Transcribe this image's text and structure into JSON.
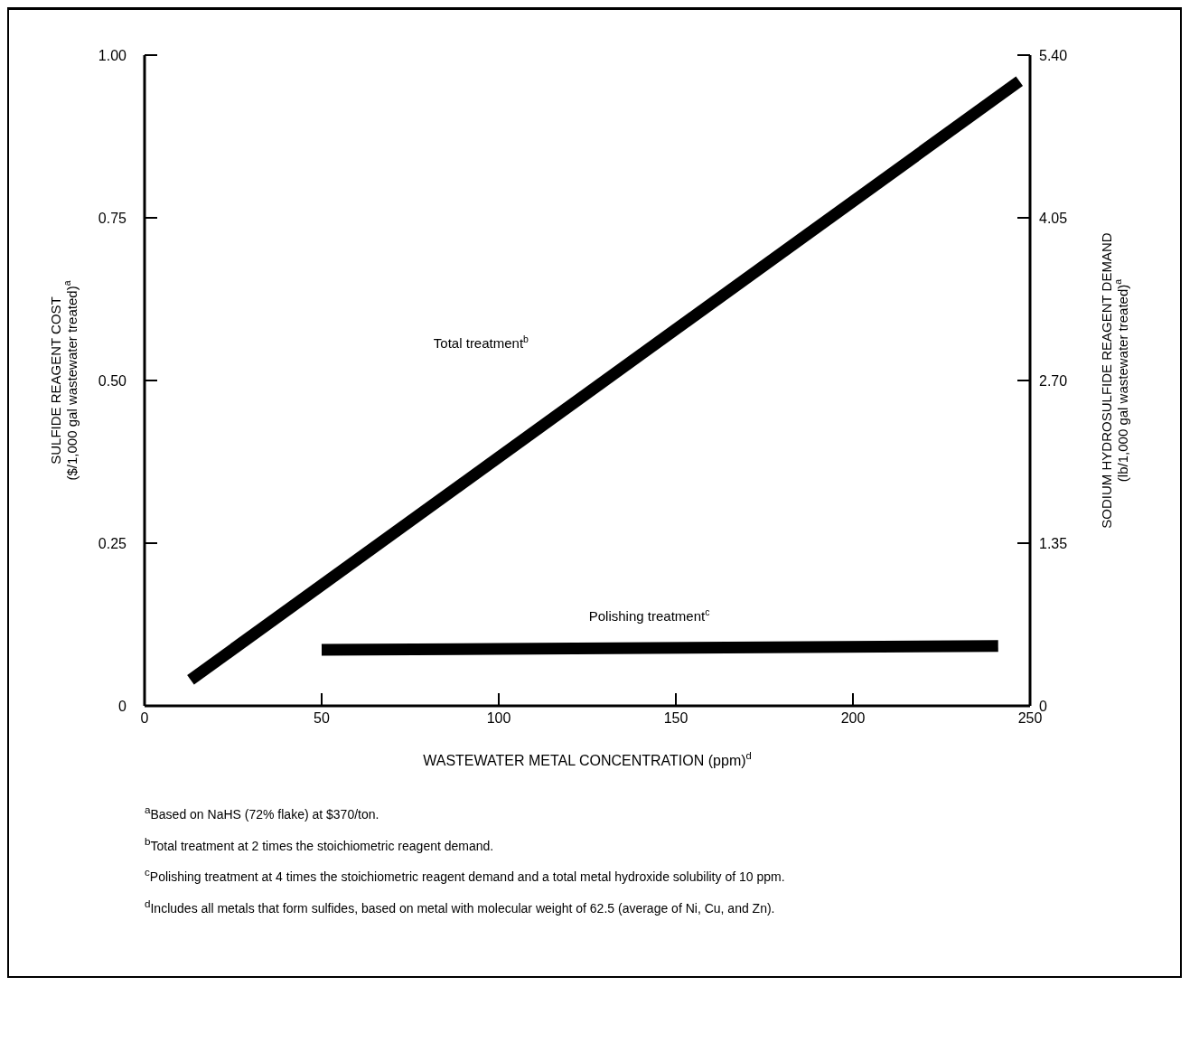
{
  "chart_data": {
    "type": "line",
    "xlabel": "WASTEWATER METAL CONCENTRATION (ppm)$^{d}$",
    "ylabel": "SULFIDE REAGENT COST\n($/1,000 gal wastewater treated)$^{a}$",
    "y2label": "SODIUM HYDROSULFIDE REAGENT DEMAND\n(lb/1,000 gal wastewater treated)$^{a}$",
    "xlim": [
      0,
      250
    ],
    "xticks": [
      0,
      50,
      100,
      150,
      200,
      250
    ],
    "ylim": [
      0,
      1
    ],
    "yticks": [
      0,
      {
        "value": 0.25,
        "label": "0.25"
      },
      {
        "value": 0.5,
        "label": "0.50"
      },
      {
        "value": 0.75,
        "label": "0.75"
      },
      {
        "value": 1,
        "label": "1.00"
      }
    ],
    "y2lim": [
      0,
      5.4
    ],
    "y2ticks": [
      0,
      {
        "value": 1.35,
        "label": "1.35"
      },
      {
        "value": 2.7,
        "label": "2.70"
      },
      {
        "value": 4.05,
        "label": "4.05"
      },
      {
        "value": 5.4,
        "label": "5.40"
      }
    ],
    "grid": false,
    "legend": false,
    "marker": "none",
    "line_style": "solid",
    "series": [
      {
        "color": "#000000",
        "x": [
          13,
          247
        ],
        "values": [
          0.04,
          0.96
        ]
      },
      {
        "color": "#000000",
        "x": [
          50,
          241
        ],
        "values": [
          0.086,
          0.092
        ]
      }
    ],
    "annotations": [
      "Total treatment$^{b}$",
      "Polishing treatment$^{c}$",
      "$^{a}$Based on NaHS (72% flake) at $370/ton.",
      "$^{b}$Total treatment at 2 times the stoichiometric reagent demand.",
      "$^{c}$Polishing treatment at 4 times the stoichiometric reagent demand and a total metal hydroxide solubility of 10 ppm.",
      "$^{d}$Includes all metals that form sulfides, based on metal with molecular weight of 62.5 (average of Ni, Cu, and Zn)."
    ]
  }
}
